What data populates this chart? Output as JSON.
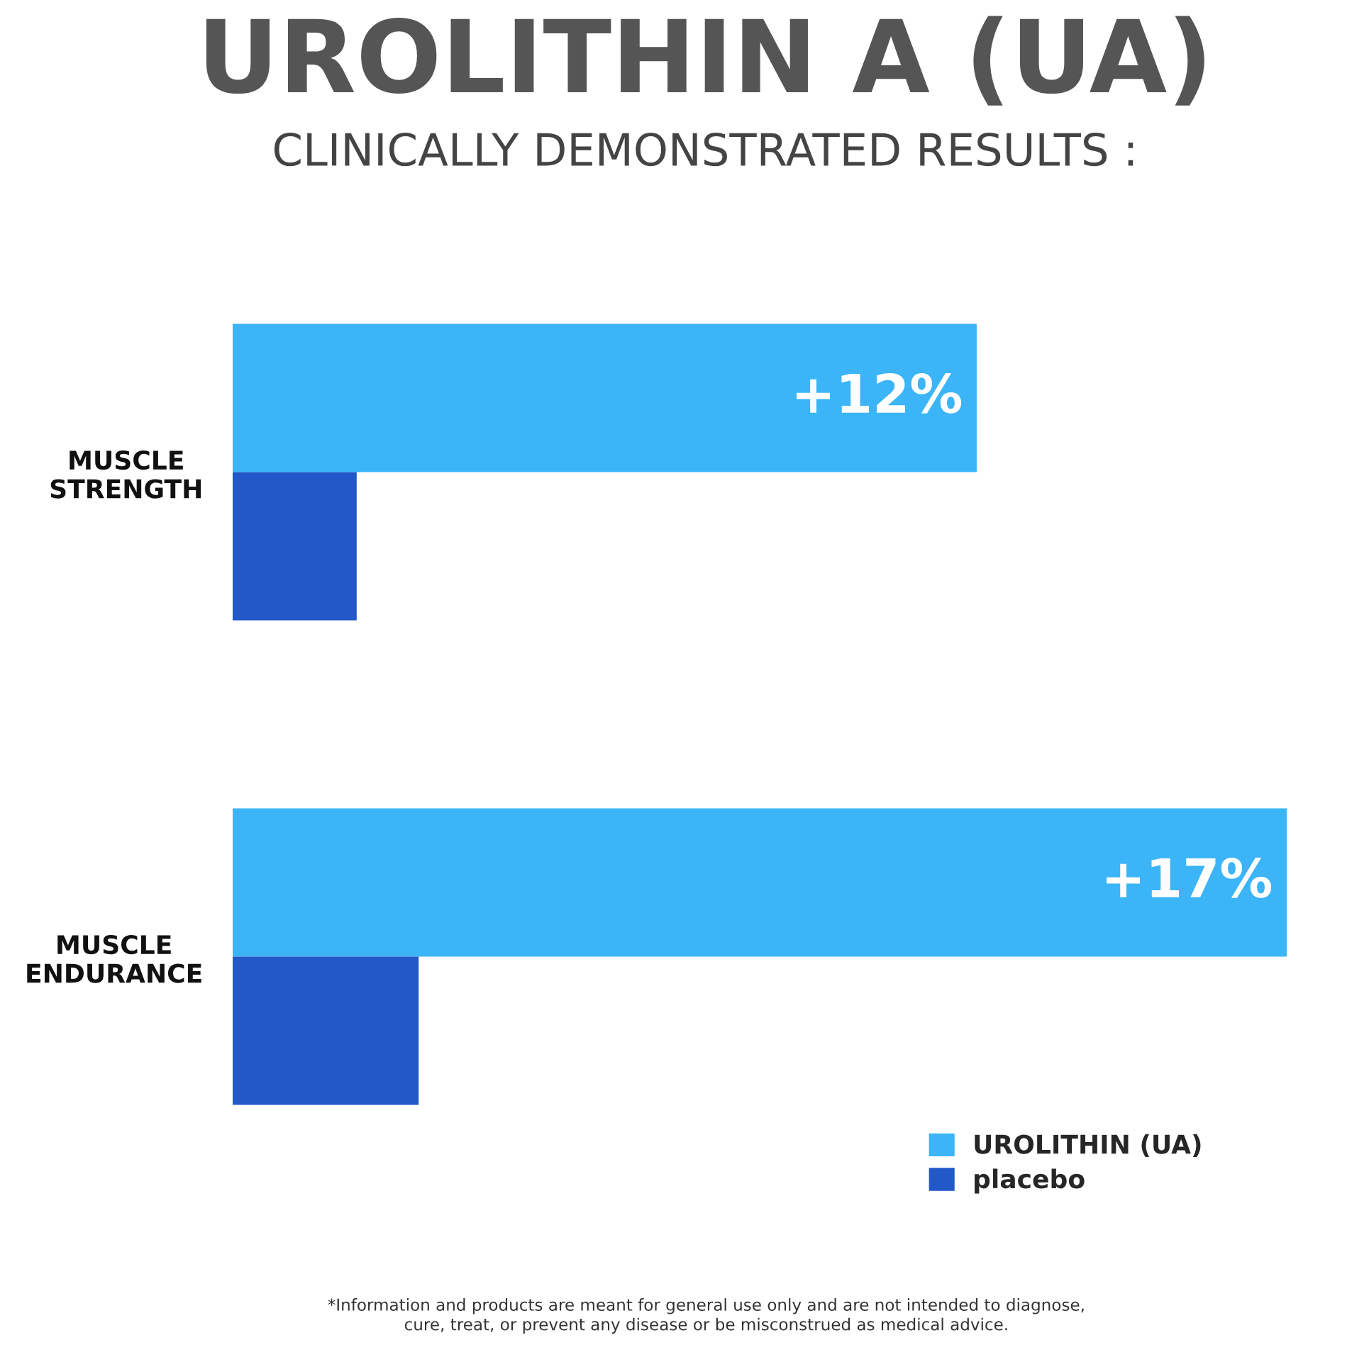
{
  "chart_data": {
    "type": "bar",
    "orientation": "horizontal",
    "title": "UROLITHIN A (UA)",
    "subtitle": "CLINICALLY DEMONSTRATED RESULTS :",
    "categories": [
      "MUSCLE\nSTRENGTH",
      "MUSCLE\nENDURANCE"
    ],
    "series": [
      {
        "name": "UROLITHIN (UA)",
        "color": "#3bb5f8",
        "values": [
          12,
          17
        ],
        "value_labels": [
          "+12%",
          "+17%"
        ]
      },
      {
        "name": "placebo",
        "color": "#2258c8",
        "values": [
          2,
          3
        ]
      }
    ],
    "xlim": [
      0,
      17
    ],
    "tick_labels": "y",
    "legend": "bottom right",
    "annotations": [
      "*Information and products are meant for general use only and are not intended to diagnose,\ncure, treat, or prevent any disease or be misconstrued as medical advice."
    ]
  }
}
